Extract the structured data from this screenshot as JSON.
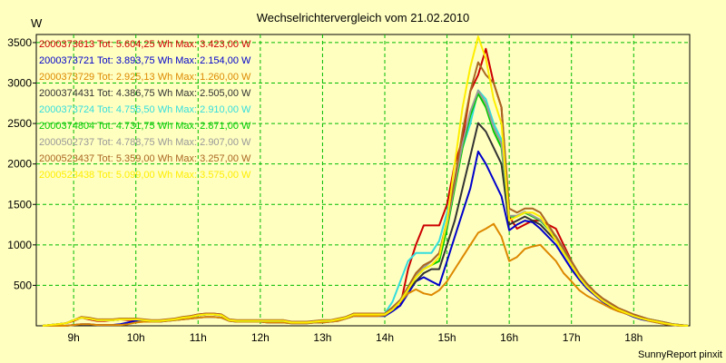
{
  "chart_data": {
    "type": "line",
    "title": "Wechselrichtervergleich vom 21.02.2010",
    "ylabel": "W",
    "xlabel": "",
    "x_ticks": [
      "9h",
      "10h",
      "11h",
      "12h",
      "13h",
      "14h",
      "15h",
      "16h",
      "17h",
      "18h"
    ],
    "x_tick_hours": [
      9,
      10,
      11,
      12,
      13,
      14,
      15,
      16,
      17,
      18
    ],
    "xlim": [
      8.4,
      18.9
    ],
    "ylim": [
      0,
      3600
    ],
    "y_ticks": [
      500,
      1000,
      1500,
      2000,
      2500,
      3000,
      3500
    ],
    "grid": true,
    "legend_position": "top-left",
    "credit": "SunnyReport pinxit",
    "x": [
      8.5,
      8.625,
      8.75,
      8.875,
      9.0,
      9.125,
      9.25,
      9.375,
      9.5,
      9.625,
      9.75,
      9.875,
      10.0,
      10.125,
      10.25,
      10.375,
      10.5,
      10.625,
      10.75,
      10.875,
      11.0,
      11.125,
      11.25,
      11.375,
      11.5,
      11.625,
      11.75,
      11.875,
      12.0,
      12.125,
      12.25,
      12.375,
      12.5,
      12.625,
      12.75,
      12.875,
      13.0,
      13.125,
      13.25,
      13.375,
      13.5,
      13.625,
      13.75,
      13.875,
      14.0,
      14.125,
      14.25,
      14.375,
      14.5,
      14.625,
      14.75,
      14.875,
      15.0,
      15.125,
      15.25,
      15.375,
      15.5,
      15.625,
      15.75,
      15.875,
      16.0,
      16.125,
      16.25,
      16.375,
      16.5,
      16.625,
      16.75,
      16.875,
      17.0,
      17.125,
      17.25,
      17.375,
      17.5,
      17.625,
      17.75,
      17.875,
      18.0,
      18.125,
      18.25,
      18.375,
      18.5,
      18.625,
      18.75,
      18.875
    ],
    "series": [
      {
        "name": "2000373613",
        "label": "2000373613 Tot: 5.604,25 Wh Max: 3.423,00 W",
        "color": "#cc0000",
        "values": [
          0,
          10,
          20,
          30,
          60,
          100,
          80,
          60,
          60,
          70,
          80,
          70,
          70,
          60,
          60,
          60,
          70,
          80,
          100,
          120,
          140,
          150,
          150,
          140,
          70,
          60,
          60,
          60,
          60,
          60,
          60,
          60,
          40,
          40,
          40,
          50,
          60,
          60,
          80,
          100,
          150,
          150,
          150,
          150,
          150,
          200,
          250,
          700,
          1000,
          1240,
          1240,
          1240,
          1500,
          2000,
          2300,
          2900,
          3100,
          3423,
          3000,
          2700,
          1350,
          1200,
          1250,
          1300,
          1300,
          1250,
          1200,
          1000,
          800,
          580,
          460,
          380,
          300,
          240,
          190,
          150,
          120,
          100,
          80,
          60,
          40,
          20,
          10,
          0
        ]
      },
      {
        "name": "2000373721",
        "label": "2000373721 Tot: 3.893,75 Wh Max: 2.154,00 W",
        "color": "#0000cc",
        "values": [
          0,
          0,
          0,
          0,
          10,
          20,
          20,
          10,
          10,
          10,
          20,
          40,
          60,
          70,
          60,
          50,
          60,
          70,
          80,
          90,
          100,
          110,
          110,
          100,
          60,
          50,
          50,
          50,
          50,
          40,
          40,
          40,
          30,
          30,
          30,
          40,
          40,
          50,
          60,
          90,
          120,
          120,
          120,
          120,
          120,
          180,
          250,
          400,
          550,
          600,
          550,
          500,
          800,
          1100,
          1400,
          1700,
          2154,
          2000,
          1800,
          1600,
          1180,
          1250,
          1300,
          1280,
          1200,
          1100,
          1000,
          850,
          700,
          570,
          460,
          380,
          300,
          240,
          190,
          150,
          110,
          80,
          60,
          40,
          20,
          10,
          0,
          0
        ]
      },
      {
        "name": "2000373729",
        "label": "2000373729 Tot: 2.925,13 Wh Max: 1.260,00 W",
        "color": "#dd8800",
        "values": [
          0,
          0,
          0,
          0,
          10,
          20,
          20,
          10,
          10,
          10,
          10,
          20,
          40,
          50,
          50,
          50,
          60,
          70,
          80,
          90,
          100,
          110,
          110,
          100,
          60,
          50,
          50,
          50,
          50,
          40,
          40,
          40,
          30,
          30,
          30,
          40,
          40,
          50,
          60,
          90,
          120,
          120,
          120,
          120,
          130,
          200,
          300,
          400,
          450,
          400,
          380,
          440,
          550,
          700,
          850,
          1000,
          1150,
          1200,
          1260,
          1100,
          800,
          850,
          950,
          980,
          1000,
          900,
          800,
          650,
          550,
          440,
          370,
          320,
          270,
          220,
          180,
          150,
          120,
          90,
          60,
          40,
          20,
          10,
          0,
          0
        ]
      },
      {
        "name": "2000374431",
        "label": "2000374431 Tot: 4.386,75 Wh Max: 2.505,00 W",
        "color": "#333333",
        "values": [
          0,
          10,
          20,
          30,
          70,
          100,
          90,
          70,
          70,
          70,
          80,
          80,
          80,
          70,
          60,
          60,
          70,
          80,
          100,
          110,
          130,
          140,
          140,
          130,
          70,
          60,
          60,
          60,
          60,
          60,
          60,
          60,
          40,
          40,
          40,
          50,
          60,
          60,
          80,
          100,
          140,
          140,
          140,
          140,
          140,
          220,
          300,
          450,
          550,
          650,
          700,
          700,
          1000,
          1300,
          1700,
          2100,
          2505,
          2400,
          2200,
          2000,
          1250,
          1300,
          1350,
          1300,
          1250,
          1150,
          1050,
          900,
          750,
          600,
          480,
          390,
          310,
          250,
          200,
          160,
          120,
          90,
          70,
          50,
          30,
          15,
          5,
          0
        ]
      },
      {
        "name": "2000373724",
        "label": "2000373724 Tot: 4.756,50 Wh Max: 2.910,00 W",
        "color": "#33dddd",
        "values": [
          0,
          10,
          20,
          30,
          70,
          100,
          90,
          70,
          70,
          70,
          80,
          80,
          80,
          70,
          60,
          60,
          70,
          80,
          100,
          110,
          130,
          140,
          140,
          130,
          70,
          60,
          60,
          60,
          60,
          60,
          60,
          60,
          40,
          40,
          40,
          50,
          60,
          60,
          80,
          100,
          140,
          140,
          140,
          140,
          150,
          300,
          550,
          800,
          900,
          900,
          900,
          1050,
          1400,
          1800,
          2200,
          2500,
          2910,
          2800,
          2500,
          2300,
          1350,
          1350,
          1400,
          1350,
          1300,
          1200,
          1100,
          950,
          780,
          620,
          500,
          400,
          320,
          260,
          210,
          170,
          130,
          100,
          80,
          60,
          40,
          20,
          10,
          0
        ]
      },
      {
        "name": "2000374804",
        "label": "2000374804 Tot: 4.731,75 Wh Max: 2.871,00 W",
        "color": "#00cc00",
        "values": [
          0,
          10,
          20,
          30,
          70,
          100,
          90,
          70,
          70,
          70,
          80,
          80,
          80,
          70,
          60,
          60,
          70,
          80,
          100,
          110,
          130,
          140,
          140,
          130,
          70,
          60,
          60,
          60,
          60,
          60,
          60,
          60,
          40,
          40,
          40,
          50,
          60,
          60,
          80,
          100,
          140,
          140,
          140,
          140,
          140,
          200,
          300,
          450,
          600,
          700,
          750,
          800,
          1200,
          1700,
          2200,
          2600,
          2871,
          2700,
          2400,
          2200,
          1350,
          1350,
          1400,
          1350,
          1300,
          1200,
          1100,
          950,
          780,
          620,
          500,
          400,
          320,
          260,
          210,
          170,
          130,
          100,
          80,
          60,
          40,
          20,
          10,
          0
        ]
      },
      {
        "name": "2000502737",
        "label": "2000502737 Tot: 4.788,75 Wh Max: 2.907,00 W",
        "color": "#999999",
        "values": [
          0,
          10,
          20,
          30,
          70,
          100,
          90,
          70,
          70,
          70,
          80,
          80,
          80,
          70,
          60,
          60,
          70,
          80,
          100,
          110,
          130,
          140,
          140,
          130,
          70,
          60,
          60,
          60,
          60,
          60,
          60,
          60,
          40,
          40,
          40,
          50,
          60,
          60,
          80,
          100,
          140,
          140,
          140,
          140,
          140,
          220,
          320,
          480,
          620,
          720,
          800,
          900,
          1250,
          1750,
          2250,
          2650,
          2907,
          2750,
          2450,
          2250,
          1360,
          1360,
          1410,
          1360,
          1310,
          1210,
          1110,
          960,
          790,
          630,
          510,
          410,
          330,
          270,
          220,
          180,
          140,
          110,
          80,
          60,
          40,
          20,
          10,
          0
        ]
      },
      {
        "name": "2000523437",
        "label": "2000523437 Tot: 5.359,00 Wh Max: 3.257,00 W",
        "color": "#aa6622",
        "values": [
          0,
          10,
          20,
          30,
          70,
          110,
          100,
          80,
          80,
          80,
          90,
          90,
          90,
          80,
          70,
          70,
          80,
          90,
          110,
          120,
          140,
          150,
          150,
          140,
          80,
          70,
          70,
          70,
          70,
          70,
          70,
          70,
          50,
          50,
          50,
          60,
          70,
          70,
          90,
          110,
          150,
          150,
          150,
          150,
          150,
          230,
          320,
          480,
          650,
          750,
          800,
          900,
          1300,
          1800,
          2400,
          2900,
          3257,
          3100,
          3000,
          2700,
          1450,
          1400,
          1450,
          1450,
          1400,
          1250,
          1100,
          950,
          800,
          640,
          520,
          420,
          340,
          280,
          220,
          180,
          140,
          110,
          80,
          60,
          40,
          20,
          10,
          0
        ]
      },
      {
        "name": "2000523438",
        "label": "2000523438 Tot: 5.099,00 Wh Max: 3.575,00 W",
        "color": "#ffee00",
        "values": [
          0,
          10,
          20,
          30,
          70,
          100,
          90,
          70,
          70,
          70,
          80,
          80,
          80,
          70,
          60,
          60,
          70,
          80,
          100,
          110,
          130,
          140,
          140,
          130,
          70,
          60,
          60,
          60,
          60,
          60,
          60,
          60,
          40,
          40,
          40,
          50,
          60,
          60,
          80,
          100,
          140,
          140,
          140,
          140,
          140,
          200,
          300,
          450,
          600,
          700,
          750,
          850,
          1300,
          2000,
          2700,
          3200,
          3575,
          3300,
          2800,
          2500,
          1300,
          1350,
          1400,
          1400,
          1350,
          1200,
          1050,
          900,
          750,
          600,
          480,
          390,
          310,
          250,
          200,
          160,
          120,
          90,
          70,
          50,
          30,
          15,
          5,
          0
        ]
      }
    ]
  }
}
